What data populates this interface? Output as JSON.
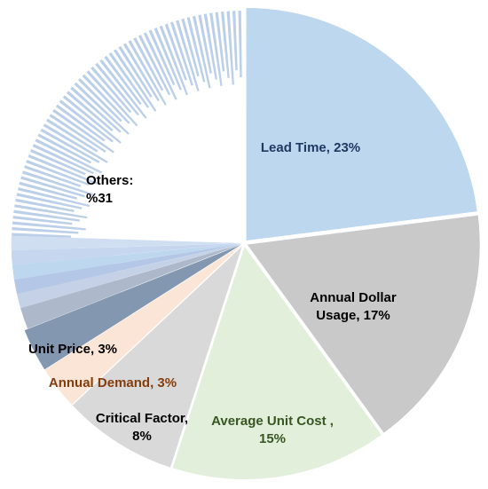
{
  "chart_data": {
    "type": "pie",
    "title": "",
    "slices": [
      {
        "name": "Lead Time",
        "value": 23,
        "label_lines": [
          "Lead Time, 23%"
        ],
        "color": "#bdd7ee",
        "text_color": "#1f3864"
      },
      {
        "name": "Annual Dollar Usage",
        "value": 17,
        "label_lines": [
          "Annual Dollar",
          "Usage, 17%"
        ],
        "color": "#c9c9c9",
        "text_color": "#000000"
      },
      {
        "name": "Average Unit Cost",
        "value": 15,
        "label_lines": [
          "Average Unit Cost ,",
          "15%"
        ],
        "color": "#e2efda",
        "text_color": "#375623"
      },
      {
        "name": "Critical Factor",
        "value": 8,
        "label_lines": [
          "Critical Factor,",
          "8%"
        ],
        "color": "#d9d9d9",
        "text_color": "#000000"
      },
      {
        "name": "Annual Demand",
        "value": 3,
        "label_lines": [
          "Annual Demand, 3%"
        ],
        "color": "#fbe5d6",
        "text_color": "#843c0c"
      },
      {
        "name": "Unit Price",
        "value": 3,
        "label_lines": [
          "Unit Price, 3%"
        ],
        "color": "#8497b0",
        "text_color": "#000000"
      }
    ],
    "others": {
      "value": 31,
      "label_lines": [
        "Others:",
        "%31"
      ],
      "text_color": "#000000",
      "small_slices": [
        1.5,
        1.0,
        1.0,
        1.0,
        1.0,
        1.0
      ],
      "small_colors": [
        "#adb9ca",
        "#c5d1e6",
        "#b4c7e7",
        "#bdd7ee",
        "#c5d6ee",
        "#d0def2"
      ],
      "hatch_color": "#b7cce8"
    }
  }
}
